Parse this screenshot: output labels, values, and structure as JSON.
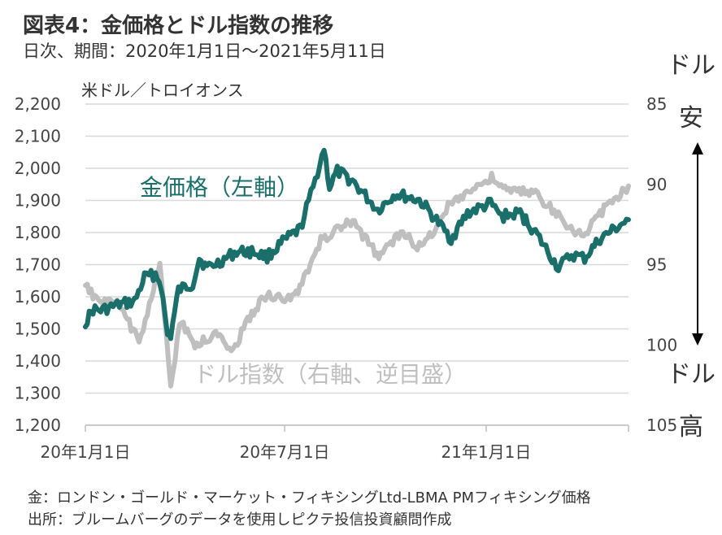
{
  "header": {
    "title": "図表4：金価格とドル指数の推移",
    "subtitle": "日次、期間：2020年1月1日～2021年5月11日"
  },
  "footer": {
    "note1": "金：ロンドン・ゴールド・マーケット・フィキシングLtd-LBMA PMフィキシング価格",
    "note2": "出所：ブルームバーグのデータを使用しピクテ投信投資顧問作成"
  },
  "colors": {
    "gold": "#1b6f6a",
    "usd": "#bfbfbf",
    "grid": "#d9d9d9"
  },
  "chart_data": {
    "type": "line",
    "ylabel_left": "米ドル／トロイオンス",
    "ylim_left": [
      1200,
      2200
    ],
    "yticks_left": [
      "1,200",
      "1,300",
      "1,400",
      "1,500",
      "1,600",
      "1,700",
      "1,800",
      "1,900",
      "2,000",
      "2,100",
      "2,200"
    ],
    "ylim_right": [
      105,
      85
    ],
    "yticks_right": [
      "85",
      "90",
      "95",
      "100",
      "105"
    ],
    "right_axis_inverted": true,
    "right_top_label": "ドル安",
    "right_bottom_label": "ドル高",
    "xticks": [
      "20年1月1日",
      "20年7月1日",
      "21年1月1日"
    ],
    "x_range": [
      "2020-01-01",
      "2021-05-11"
    ],
    "grid": "horizontal",
    "series": [
      {
        "name": "金価格（左軸）",
        "axis": "left",
        "x": [
          "2020-01-01",
          "2020-01-08",
          "2020-01-15",
          "2020-02-01",
          "2020-02-15",
          "2020-02-24",
          "2020-03-05",
          "2020-03-10",
          "2020-03-16",
          "2020-03-19",
          "2020-03-26",
          "2020-04-08",
          "2020-04-14",
          "2020-04-21",
          "2020-05-01",
          "2020-05-18",
          "2020-06-01",
          "2020-06-15",
          "2020-07-01",
          "2020-07-15",
          "2020-07-27",
          "2020-08-06",
          "2020-08-11",
          "2020-08-18",
          "2020-09-01",
          "2020-09-24",
          "2020-10-10",
          "2020-11-01",
          "2020-11-09",
          "2020-11-30",
          "2020-12-15",
          "2021-01-05",
          "2021-01-15",
          "2021-02-01",
          "2021-02-15",
          "2021-03-08",
          "2021-03-20",
          "2021-04-01",
          "2021-04-15",
          "2021-05-11"
        ],
        "y": [
          1520,
          1560,
          1557,
          1575,
          1585,
          1660,
          1670,
          1640,
          1480,
          1480,
          1620,
          1640,
          1720,
          1690,
          1705,
          1740,
          1740,
          1725,
          1775,
          1810,
          1940,
          2063,
          1940,
          1990,
          1960,
          1870,
          1920,
          1900,
          1870,
          1780,
          1860,
          1890,
          1850,
          1860,
          1800,
          1690,
          1730,
          1720,
          1780,
          1840
        ]
      },
      {
        "name": "ドル指数（右軸、逆目盛）",
        "axis": "right",
        "x": [
          "2020-01-01",
          "2020-01-15",
          "2020-02-01",
          "2020-02-19",
          "2020-03-09",
          "2020-03-13",
          "2020-03-19",
          "2020-03-27",
          "2020-04-10",
          "2020-05-01",
          "2020-05-15",
          "2020-06-01",
          "2020-06-15",
          "2020-07-01",
          "2020-07-15",
          "2020-08-03",
          "2020-08-18",
          "2020-09-01",
          "2020-09-25",
          "2020-10-15",
          "2020-11-03",
          "2020-12-01",
          "2021-01-06",
          "2021-01-20",
          "2021-02-15",
          "2021-03-08",
          "2021-03-31",
          "2021-04-15",
          "2021-05-11"
        ],
        "y": [
          96.4,
          97.3,
          97.5,
          99.8,
          95.0,
          98.0,
          102.8,
          98.5,
          100.0,
          99.3,
          100.3,
          98.0,
          96.8,
          97.3,
          96.5,
          93.5,
          92.8,
          92.3,
          94.5,
          93.0,
          94.0,
          91.0,
          89.6,
          90.4,
          90.5,
          92.0,
          93.3,
          91.8,
          90.1
        ]
      }
    ]
  }
}
